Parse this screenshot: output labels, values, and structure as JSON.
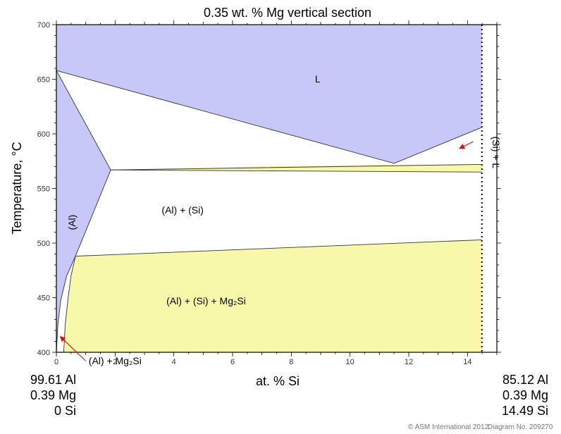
{
  "chart_data": {
    "type": "phase-diagram",
    "title": "0.35 wt. % Mg vertical section",
    "xlabel": "at. % Si",
    "ylabel": "Temperature, °C",
    "xlim": [
      0,
      15
    ],
    "ylim": [
      400,
      700
    ],
    "x_ticks": [
      "0",
      "2",
      "4",
      "6",
      "8",
      "10",
      "12",
      "14"
    ],
    "y_ticks": [
      "400",
      "450",
      "500",
      "550",
      "600",
      "650",
      "700"
    ],
    "dotted_boundary_x": 14.49,
    "left_composition": [
      "99.61 Al",
      "0.39 Mg",
      "0 Si"
    ],
    "right_composition": [
      "85.12 Al",
      "0.39 Mg",
      "14.49 Si"
    ],
    "regions": [
      {
        "label": "L",
        "color": "#c8c8f8",
        "points": [
          [
            0,
            658
          ],
          [
            11.5,
            573
          ],
          [
            14.49,
            606
          ],
          [
            14.49,
            700
          ],
          [
            0,
            700
          ]
        ]
      },
      {
        "label": "(Al)",
        "color": "#c8c8f8",
        "points": [
          [
            0,
            658
          ],
          [
            1.85,
            567
          ],
          [
            0.65,
            488
          ],
          [
            0.35,
            470
          ],
          [
            0.15,
            448
          ],
          [
            0.05,
            425
          ],
          [
            0,
            400
          ]
        ]
      },
      {
        "label": "(Al) + (Si) + Mg2Si",
        "color": "#f8f8aa",
        "points": [
          [
            0.65,
            488
          ],
          [
            14.49,
            503
          ],
          [
            14.49,
            400
          ],
          [
            0.25,
            400
          ],
          [
            0.3,
            425
          ],
          [
            0.4,
            450
          ],
          [
            0.5,
            470
          ]
        ]
      },
      {
        "label": "",
        "color": "#f8f8aa",
        "points": [
          [
            1.85,
            567
          ],
          [
            8,
            571
          ],
          [
            14.49,
            572
          ],
          [
            14.49,
            565
          ],
          [
            8,
            566
          ]
        ]
      }
    ],
    "boundaries": [
      [
        [
          0,
          658
        ],
        [
          11.5,
          573
        ],
        [
          14.49,
          606
        ]
      ],
      [
        [
          0,
          658
        ],
        [
          1.85,
          567
        ],
        [
          14.49,
          572
        ]
      ],
      [
        [
          1.85,
          567
        ],
        [
          8,
          566
        ],
        [
          14.49,
          565
        ]
      ],
      [
        [
          1.85,
          567
        ],
        [
          0.65,
          488
        ],
        [
          0.35,
          470
        ],
        [
          0.15,
          448
        ],
        [
          0.05,
          425
        ],
        [
          0,
          400
        ]
      ],
      [
        [
          0.65,
          488
        ],
        [
          14.49,
          503
        ]
      ],
      [
        [
          0.65,
          488
        ],
        [
          0.5,
          470
        ],
        [
          0.4,
          450
        ],
        [
          0.3,
          425
        ],
        [
          0.25,
          400
        ]
      ]
    ],
    "labels": [
      {
        "text": "L",
        "x": 8.9,
        "y": 647
      },
      {
        "text": "(Al) + (Si)",
        "x": 4.3,
        "y": 527
      },
      {
        "text": "(Al) + (Si) + Mg₂Si",
        "x": 5.1,
        "y": 444
      },
      {
        "text": "(Al)",
        "x": 0.65,
        "y": 519,
        "rotate": -90
      },
      {
        "text": "(Al) + Mg₂Si",
        "x": 2.0,
        "y": 389
      },
      {
        "text": "(Si) + L",
        "x": 14.85,
        "y": 583,
        "rotate": 90
      }
    ],
    "arrows": [
      {
        "from": [
          1.0,
          392
        ],
        "to": [
          0.15,
          414
        ]
      },
      {
        "from": [
          14.2,
          593
        ],
        "to": [
          13.75,
          587
        ]
      }
    ]
  },
  "footer": {
    "copyright": "© ASM International 2012.",
    "diagram": "Diagram No. 209270"
  }
}
